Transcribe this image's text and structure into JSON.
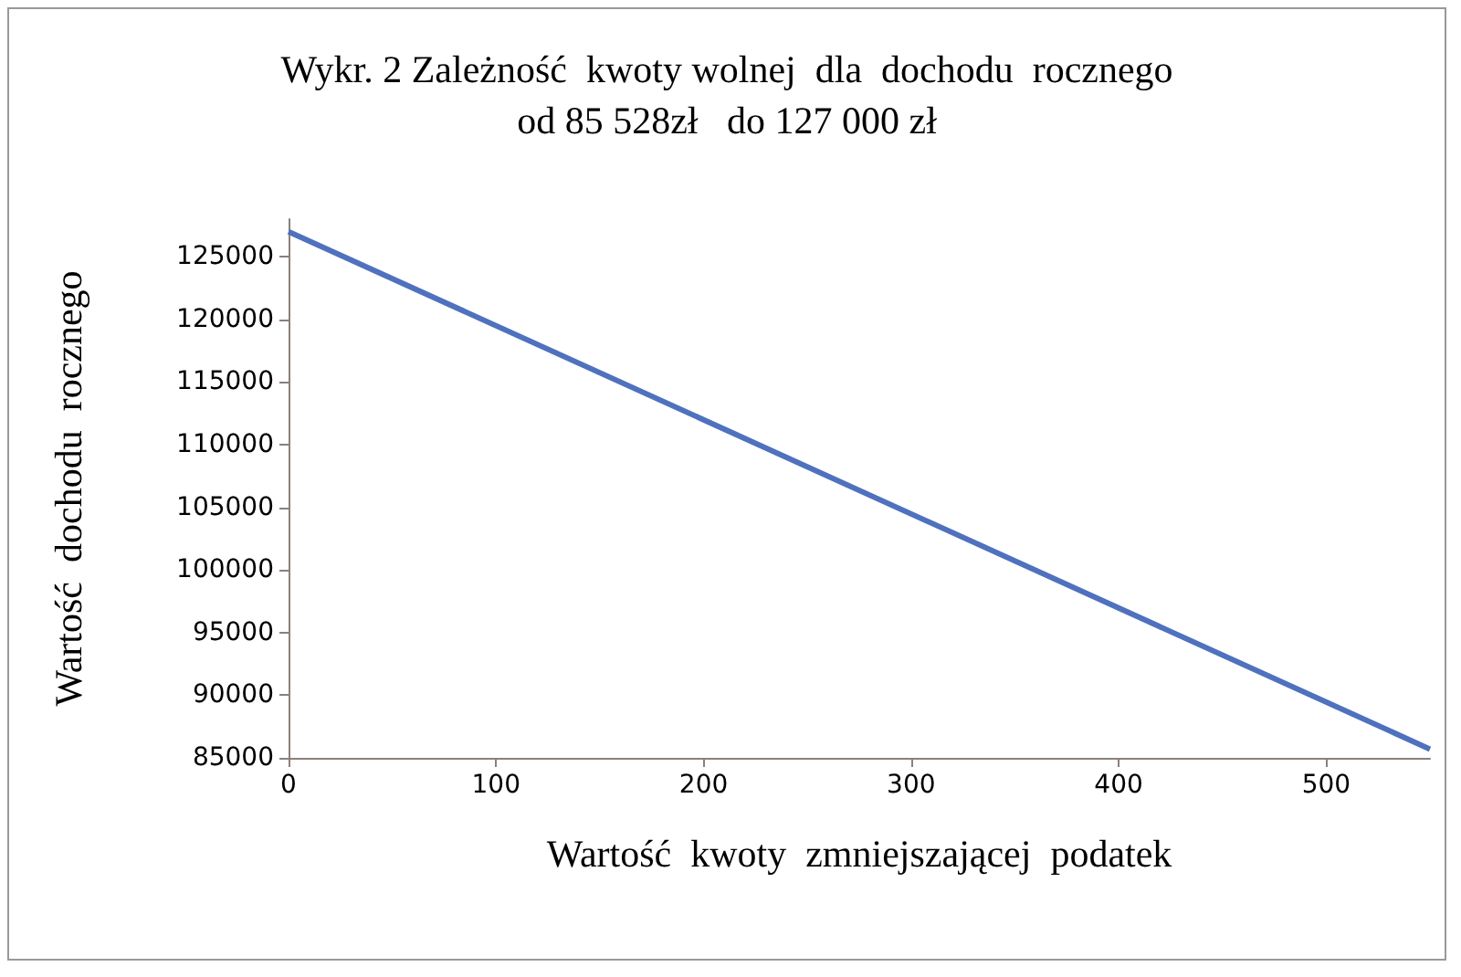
{
  "chart_data": {
    "type": "line",
    "title": "Wykr. 2 Zależność  kwoty wolnej  dla  dochodu  rocznego\nod 85 528zł   do 127 000 zł",
    "xlabel": "Wartość  kwoty  zmniejszającej  podatek",
    "ylabel": "Wartość  dochodu  rocznego",
    "x": [
      0,
      550
    ],
    "series": [
      {
        "color": "#4f71be",
        "values": [
          127000,
          85700
        ]
      }
    ],
    "xlim": [
      0,
      550
    ],
    "xticks": [
      0,
      100,
      200,
      300,
      400,
      500
    ],
    "ylim": [
      85000,
      128000
    ],
    "yticks": [
      85000,
      90000,
      95000,
      100000,
      105000,
      110000,
      115000,
      120000,
      125000
    ],
    "line_style": "solid"
  }
}
